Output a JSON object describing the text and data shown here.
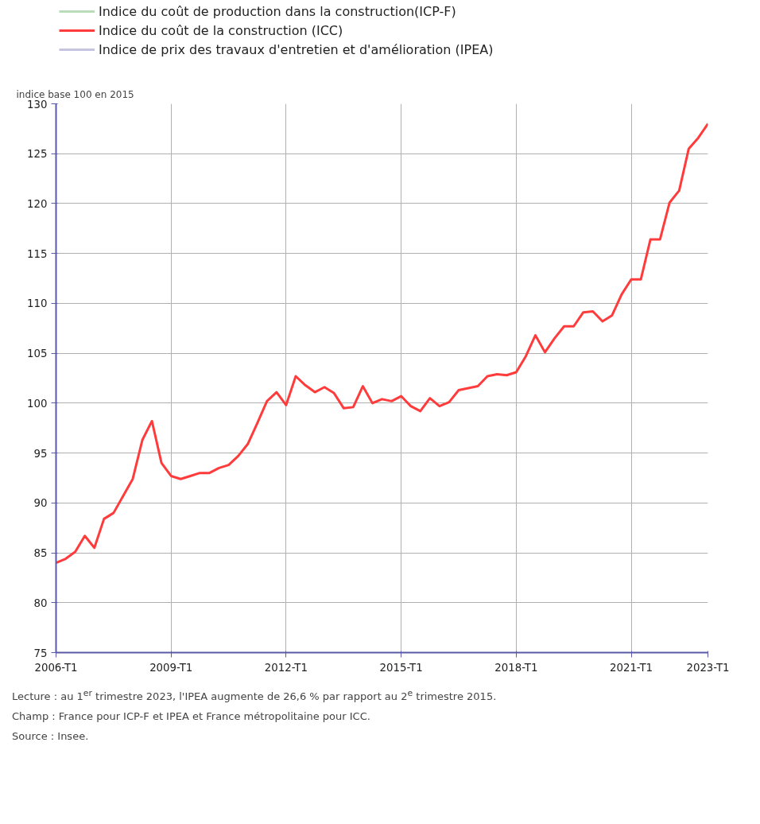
{
  "chart_data": {
    "type": "line",
    "ylabel": "indice base 100 en 2015",
    "categories": [
      "2006-T1",
      null,
      null,
      null,
      null,
      null,
      null,
      null,
      null,
      null,
      null,
      null,
      "2009-T1",
      null,
      null,
      null,
      null,
      null,
      null,
      null,
      null,
      null,
      null,
      null,
      "2012-T1",
      null,
      null,
      null,
      null,
      null,
      null,
      null,
      null,
      null,
      null,
      null,
      "2015-T1",
      null,
      null,
      null,
      null,
      null,
      null,
      null,
      null,
      null,
      null,
      null,
      "2018-T1",
      null,
      null,
      null,
      null,
      null,
      null,
      null,
      null,
      null,
      null,
      null,
      "2021-T1",
      null,
      null,
      null,
      null,
      null,
      null,
      null,
      "2023-T1"
    ],
    "series": [
      {
        "name": "Indice du coût de production dans la construction(ICP-F)",
        "color": "#b9dcb9",
        "values": [
          null,
          null,
          null,
          null,
          null,
          null,
          null,
          null,
          null,
          null,
          null,
          null,
          null,
          null,
          null,
          null,
          null,
          null,
          null,
          null,
          null,
          null,
          null,
          null,
          null,
          null,
          null,
          null,
          null,
          null,
          null,
          null,
          null,
          null,
          null,
          null,
          null,
          null,
          null,
          null,
          null,
          null,
          null,
          null,
          null,
          null,
          null,
          null,
          null,
          null,
          null,
          null,
          null,
          null,
          null,
          null,
          null,
          null,
          null,
          null,
          null,
          null,
          null,
          null,
          null,
          null,
          null,
          null,
          null
        ]
      },
      {
        "name": "Indice du coût de la construction (ICC)",
        "color": "#ff3b3b",
        "values": [
          84.0,
          84.4,
          85.1,
          86.7,
          85.5,
          88.4,
          89.0,
          90.7,
          92.4,
          96.3,
          98.2,
          94.0,
          92.7,
          92.4,
          92.7,
          93.0,
          93.0,
          93.5,
          93.8,
          94.7,
          95.9,
          98.0,
          100.2,
          101.1,
          99.8,
          102.7,
          101.8,
          101.1,
          101.6,
          101.0,
          99.5,
          99.6,
          101.7,
          100.0,
          100.4,
          100.2,
          100.7,
          99.7,
          99.2,
          100.5,
          99.7,
          100.1,
          101.3,
          101.5,
          101.7,
          102.7,
          102.9,
          102.8,
          103.1,
          104.7,
          106.8,
          105.1,
          106.5,
          107.7,
          107.7,
          109.1,
          109.2,
          108.2,
          108.8,
          110.9,
          112.4,
          112.4,
          116.4,
          116.4,
          120.1,
          121.3,
          125.5,
          126.6,
          128.0
        ]
      },
      {
        "name": "Indice de prix des travaux d'entretien et d'amélioration (IPEA)",
        "color": "#c4c4e0",
        "values": [
          null,
          null,
          null,
          null,
          null,
          null,
          null,
          null,
          null,
          null,
          null,
          null,
          null,
          null,
          null,
          null,
          null,
          null,
          null,
          null,
          null,
          null,
          null,
          null,
          null,
          null,
          null,
          null,
          null,
          null,
          null,
          null,
          null,
          null,
          null,
          null,
          null,
          null,
          null,
          null,
          null,
          null,
          null,
          null,
          null,
          null,
          null,
          null,
          null,
          null,
          null,
          null,
          null,
          null,
          null,
          null,
          null,
          null,
          null,
          null,
          null,
          null,
          null,
          null,
          null,
          null,
          null,
          null,
          null
        ]
      }
    ],
    "ylim": [
      75,
      130
    ],
    "yticks": [
      75,
      80,
      85,
      90,
      95,
      100,
      105,
      110,
      115,
      120,
      125,
      130
    ],
    "grid": true,
    "legend": "top left",
    "marker": "none",
    "line_style": "solid",
    "annotations": [
      "Lecture : au 1$^{er}$ trimestre 2023, l'IPEA augmente de 26,6 % par rapport au 2$^{e}$ trimestre 2015.",
      "Champ : France pour ICP-F et IPEA et France métropolitaine pour ICC.",
      "Source : Insee."
    ]
  }
}
